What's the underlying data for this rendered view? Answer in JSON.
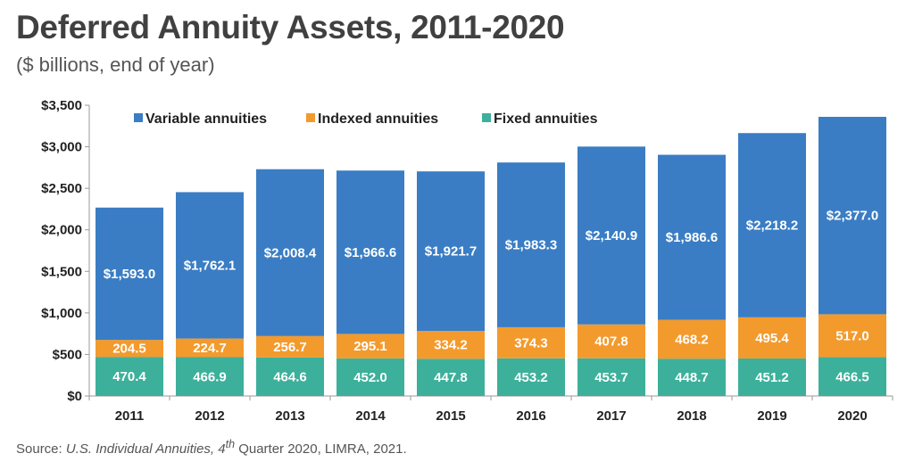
{
  "title": "Deferred Annuity Assets, 2011-2020",
  "subtitle": "($ billions, end of year)",
  "source": {
    "prefix": "Source: ",
    "work": "U.S. Individual Annuities, 4",
    "superscript": "th",
    "suffix": " Quarter 2020, LIMRA, 2021."
  },
  "chart_data": {
    "type": "bar",
    "stacked": true,
    "categories": [
      "2011",
      "2012",
      "2013",
      "2014",
      "2015",
      "2016",
      "2017",
      "2018",
      "2019",
      "2020"
    ],
    "series": [
      {
        "name": "Fixed annuities",
        "color": "#3cb09a",
        "values": [
          470.4,
          466.9,
          464.6,
          452.0,
          447.8,
          453.2,
          453.7,
          448.7,
          451.2,
          466.5
        ],
        "labels": [
          "470.4",
          "466.9",
          "464.6",
          "452.0",
          "447.8",
          "453.2",
          "453.7",
          "448.7",
          "451.2",
          "466.5"
        ]
      },
      {
        "name": "Indexed annuities",
        "color": "#f39a2d",
        "values": [
          204.5,
          224.7,
          256.7,
          295.1,
          334.2,
          374.3,
          407.8,
          468.2,
          495.4,
          517.0
        ],
        "labels": [
          "204.5",
          "224.7",
          "256.7",
          "295.1",
          "334.2",
          "374.3",
          "407.8",
          "468.2",
          "495.4",
          "517.0"
        ]
      },
      {
        "name": "Variable annuities",
        "color": "#3a7dc4",
        "values": [
          1593.0,
          1762.1,
          2008.4,
          1966.6,
          1921.7,
          1983.3,
          2140.9,
          1986.6,
          2218.2,
          2377.0
        ],
        "labels": [
          "$1,593.0",
          "$1,762.1",
          "$2,008.4",
          "$1,966.6",
          "$1,921.7",
          "$1,983.3",
          "$2,140.9",
          "$1,986.6",
          "$2,218.2",
          "$2,377.0"
        ]
      }
    ],
    "legend_order": [
      "Variable annuities",
      "Indexed annuities",
      "Fixed annuities"
    ],
    "legend_placement": "top",
    "yticks": [
      0,
      500,
      1000,
      1500,
      2000,
      2500,
      3000,
      3500
    ],
    "ytick_labels": [
      "$0",
      "$500",
      "$1,000",
      "$1,500",
      "$2,000",
      "$2,500",
      "$3,000",
      "$3,500"
    ],
    "ylim": [
      0,
      3500
    ],
    "grid": false
  }
}
